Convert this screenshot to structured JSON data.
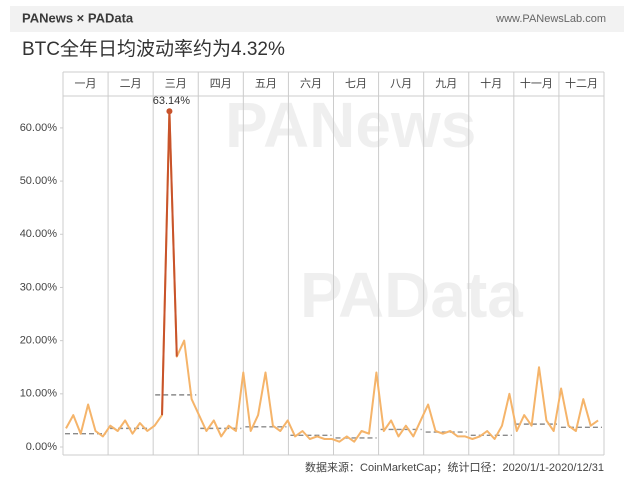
{
  "header": {
    "logo": "PANews × PAData",
    "site": "www.PANewsLab.com"
  },
  "watermarks": [
    "PANews",
    "PAData"
  ],
  "chart_data": {
    "type": "line",
    "title": "BTC全年日均波动率约为4.32%",
    "source": "数据来源：CoinMarketCap；统计口径：2020/1/1-2020/12/31",
    "categories": [
      "一月",
      "二月",
      "三月",
      "四月",
      "五月",
      "六月",
      "七月",
      "八月",
      "九月",
      "十月",
      "十一月",
      "十二月"
    ],
    "x": [
      2,
      7,
      12,
      17,
      22,
      27,
      32,
      37,
      42,
      47,
      52,
      57,
      62,
      67,
      72,
      77,
      82,
      87,
      92,
      97,
      102,
      107,
      112,
      117,
      122,
      127,
      132,
      137,
      142,
      147,
      152,
      157,
      162,
      167,
      172,
      177,
      182,
      187,
      192,
      197,
      202,
      207,
      212,
      217,
      222,
      227,
      232,
      237,
      242,
      247,
      252,
      257,
      262,
      267,
      272,
      277,
      282,
      287,
      292,
      297,
      302,
      307,
      312,
      317,
      322,
      327,
      332,
      337,
      342,
      347,
      352,
      357,
      362
    ],
    "values": [
      3.5,
      6,
      2.5,
      8,
      3,
      2,
      4,
      3,
      5,
      2.5,
      4.5,
      3,
      4,
      6,
      63.14,
      17,
      20,
      9,
      6,
      3,
      5,
      2,
      4,
      3,
      14,
      3,
      6,
      14,
      4,
      3,
      5,
      2,
      3,
      1.5,
      2,
      1.5,
      1.5,
      1,
      2,
      1,
      3,
      2.5,
      14,
      3,
      5,
      2,
      4,
      2,
      5,
      8,
      3,
      2.5,
      3,
      2,
      2,
      1.5,
      2,
      3,
      1.5,
      4,
      10,
      3,
      6,
      4,
      15,
      5,
      3,
      11,
      4,
      3,
      9,
      4,
      5
    ],
    "value_labels": [
      null,
      null,
      null,
      null,
      null,
      null,
      null,
      null,
      null,
      null,
      null,
      null,
      null,
      null,
      "63.14%",
      null,
      null,
      null,
      null,
      null,
      null,
      null,
      null,
      null,
      null,
      null,
      null,
      null,
      null,
      null,
      null,
      null,
      null,
      null,
      null,
      null,
      null,
      null,
      null,
      null,
      null,
      null,
      null,
      null,
      null,
      null,
      null,
      null,
      null,
      null,
      null,
      null,
      null,
      null,
      null,
      null,
      null,
      null,
      null,
      null,
      null,
      null,
      null,
      null,
      null,
      null,
      null,
      null,
      null,
      null,
      null,
      null,
      null
    ],
    "color": "#f5b46a",
    "peak_color": "#c8532b",
    "monthly_average": [
      2.5,
      3.5,
      9.8,
      3.5,
      3.8,
      2.2,
      1.7,
      3.3,
      2.8,
      2.2,
      4.3,
      3.7
    ],
    "average_color": "#8a8a8a",
    "xlim": [
      0,
      366
    ],
    "ylim": [
      0,
      66
    ],
    "yticks": [
      {
        "value": 0,
        "label": "0.00%"
      },
      {
        "value": 10,
        "label": "10.00%"
      },
      {
        "value": 20,
        "label": "20.00%"
      },
      {
        "value": 30,
        "label": "30.00%"
      },
      {
        "value": 40,
        "label": "40.00%"
      },
      {
        "value": 50,
        "label": "50.00%"
      },
      {
        "value": 60,
        "label": "60.00%"
      }
    ]
  }
}
